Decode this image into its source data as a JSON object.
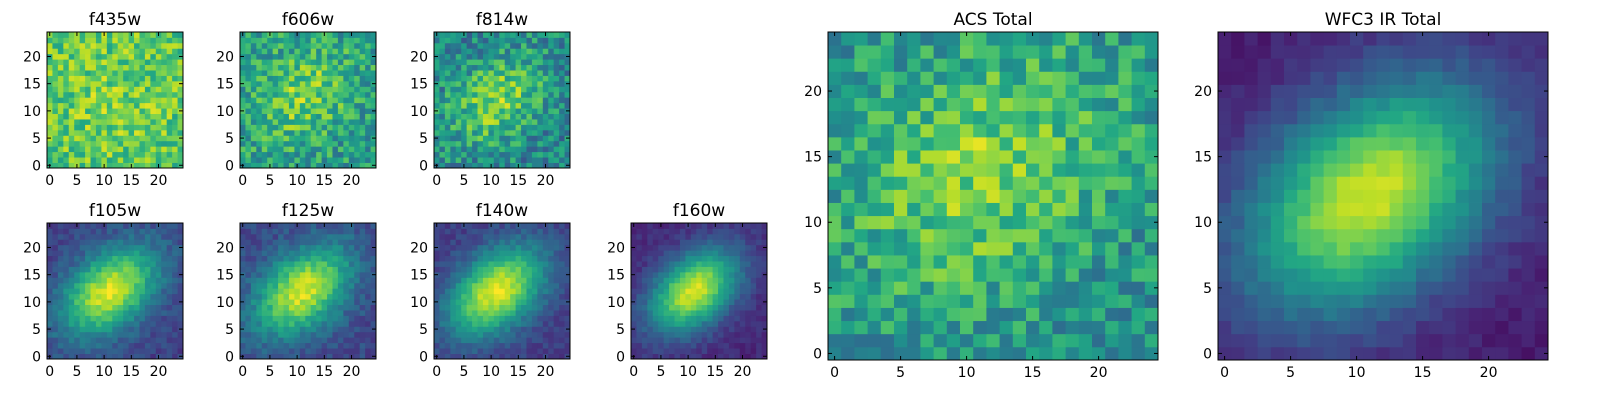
{
  "figure": {
    "type": "heatmap-grid",
    "colormap": "viridis",
    "colors": {
      "viridis_low": "#440154",
      "viridis_mid": "#21918c",
      "viridis_high": "#fde725",
      "frame": "#000000",
      "background": "#ffffff"
    }
  },
  "chart_data": [
    {
      "type": "heatmap",
      "title": "f435w",
      "grid_size": 25,
      "xlim": [
        0,
        24
      ],
      "ylim": [
        0,
        24
      ],
      "xticks": [
        0,
        5,
        10,
        15,
        20
      ],
      "yticks": [
        0,
        5,
        10,
        15,
        20
      ],
      "profile": {
        "cx": 12,
        "cy": 12,
        "amp": 0.08,
        "base": 0.72,
        "noise": 0.18,
        "angle_deg": 0,
        "sx": 8,
        "sy": 8,
        "seed": 11
      }
    },
    {
      "type": "heatmap",
      "title": "f606w",
      "grid_size": 25,
      "xlim": [
        0,
        24
      ],
      "ylim": [
        0,
        24
      ],
      "xticks": [
        0,
        5,
        10,
        15,
        20
      ],
      "yticks": [
        0,
        5,
        10,
        15,
        20
      ],
      "profile": {
        "cx": 11,
        "cy": 13,
        "amp": 0.25,
        "base": 0.55,
        "noise": 0.2,
        "angle_deg": -40,
        "sx": 7,
        "sy": 5,
        "seed": 23
      }
    },
    {
      "type": "heatmap",
      "title": "f814w",
      "grid_size": 25,
      "xlim": [
        0,
        24
      ],
      "ylim": [
        0,
        24
      ],
      "xticks": [
        0,
        5,
        10,
        15,
        20
      ],
      "yticks": [
        0,
        5,
        10,
        15,
        20
      ],
      "profile": {
        "cx": 11,
        "cy": 12,
        "amp": 0.35,
        "base": 0.45,
        "noise": 0.2,
        "angle_deg": -40,
        "sx": 7,
        "sy": 5,
        "seed": 37
      }
    },
    {
      "type": "heatmap",
      "title": "f105w",
      "grid_size": 25,
      "xlim": [
        0,
        24
      ],
      "ylim": [
        0,
        24
      ],
      "xticks": [
        0,
        5,
        10,
        15,
        20
      ],
      "yticks": [
        0,
        5,
        10,
        15,
        20
      ],
      "profile": {
        "cx": 11,
        "cy": 12,
        "amp": 0.75,
        "base": 0.2,
        "noise": 0.07,
        "angle_deg": -40,
        "sx": 7,
        "sy": 4.5,
        "seed": 41
      }
    },
    {
      "type": "heatmap",
      "title": "f125w",
      "grid_size": 25,
      "xlim": [
        0,
        24
      ],
      "ylim": [
        0,
        24
      ],
      "xticks": [
        0,
        5,
        10,
        15,
        20
      ],
      "yticks": [
        0,
        5,
        10,
        15,
        20
      ],
      "profile": {
        "cx": 11,
        "cy": 12,
        "amp": 0.72,
        "base": 0.22,
        "noise": 0.08,
        "angle_deg": -40,
        "sx": 7,
        "sy": 4.5,
        "seed": 53
      }
    },
    {
      "type": "heatmap",
      "title": "f140w",
      "grid_size": 25,
      "xlim": [
        0,
        24
      ],
      "ylim": [
        0,
        24
      ],
      "xticks": [
        0,
        5,
        10,
        15,
        20
      ],
      "yticks": [
        0,
        5,
        10,
        15,
        20
      ],
      "profile": {
        "cx": 11,
        "cy": 12,
        "amp": 0.78,
        "base": 0.18,
        "noise": 0.06,
        "angle_deg": -40,
        "sx": 7,
        "sy": 4.5,
        "seed": 67
      }
    },
    {
      "type": "heatmap",
      "title": "f160w",
      "grid_size": 25,
      "xlim": [
        0,
        24
      ],
      "ylim": [
        0,
        24
      ],
      "xticks": [
        0,
        5,
        10,
        15,
        20
      ],
      "yticks": [
        0,
        5,
        10,
        15,
        20
      ],
      "profile": {
        "cx": 11,
        "cy": 12,
        "amp": 0.82,
        "base": 0.12,
        "noise": 0.05,
        "angle_deg": -40,
        "sx": 6.5,
        "sy": 4.2,
        "seed": 79
      }
    },
    {
      "type": "heatmap",
      "title": "ACS Total",
      "grid_size": 25,
      "xlim": [
        0,
        24
      ],
      "ylim": [
        0,
        24
      ],
      "xticks": [
        0,
        5,
        10,
        15,
        20
      ],
      "yticks": [
        0,
        5,
        10,
        15,
        20
      ],
      "profile": {
        "cx": 11,
        "cy": 14,
        "amp": 0.3,
        "base": 0.5,
        "noise": 0.18,
        "angle_deg": -40,
        "sx": 8,
        "sy": 6,
        "seed": 97
      }
    },
    {
      "type": "heatmap",
      "title": "WFC3 IR Total",
      "grid_size": 25,
      "xlim": [
        0,
        24
      ],
      "ylim": [
        0,
        24
      ],
      "xticks": [
        0,
        5,
        10,
        15,
        20
      ],
      "yticks": [
        0,
        5,
        10,
        15,
        20
      ],
      "profile": {
        "cx": 11,
        "cy": 12,
        "amp": 0.85,
        "base": 0.08,
        "noise": 0.04,
        "angle_deg": -40,
        "sx": 7.5,
        "sy": 5,
        "seed": 109
      }
    }
  ]
}
